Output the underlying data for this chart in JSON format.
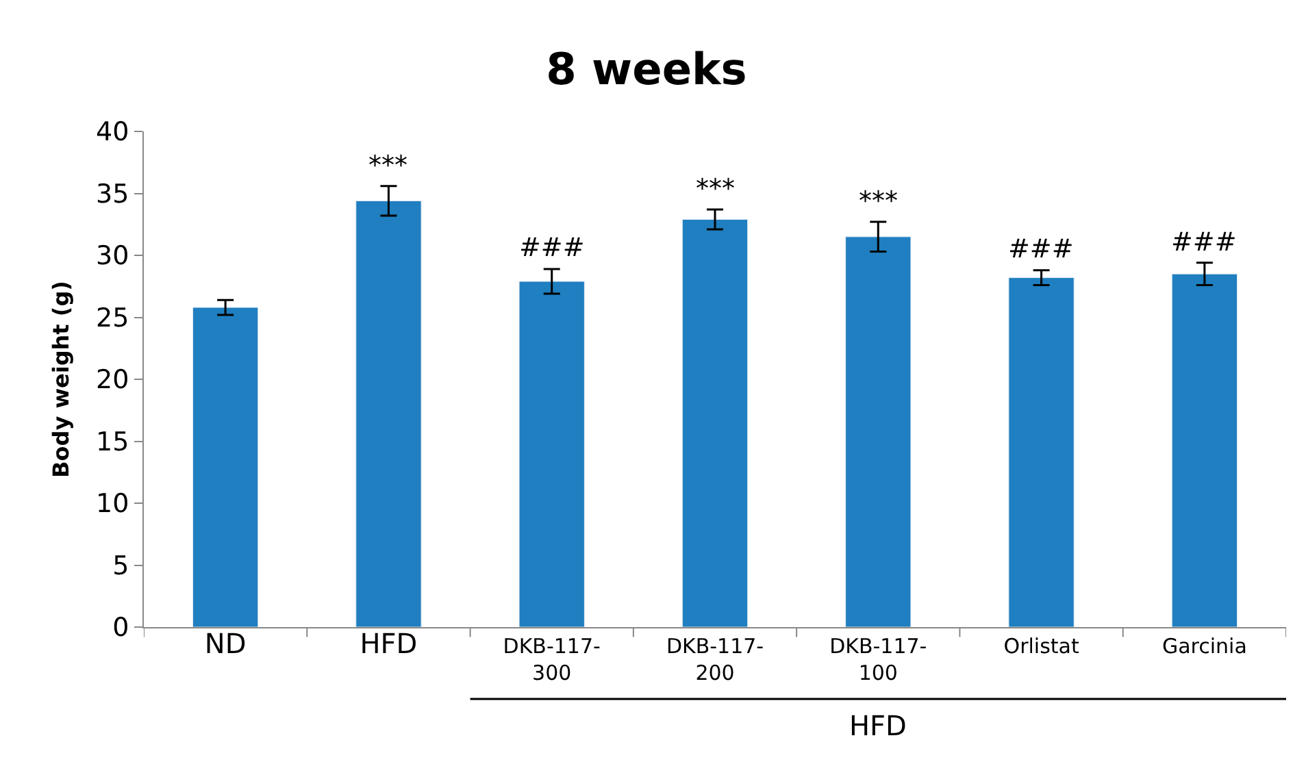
{
  "chart_data": {
    "type": "bar",
    "title": "8 weeks",
    "ylabel": "Body weight (g)",
    "categories": [
      "ND",
      "HFD",
      "DKB-117-300",
      "DKB-117-200",
      "DKB-117-100",
      "Orlistat",
      "Garcinia"
    ],
    "values": [
      25.8,
      34.4,
      27.9,
      32.9,
      31.5,
      28.2,
      28.5
    ],
    "errors": [
      0.6,
      1.2,
      1.0,
      0.8,
      1.2,
      0.6,
      0.9
    ],
    "color": "#1f7fc0",
    "ylim": [
      0,
      40
    ],
    "yticks": [
      0,
      5,
      10,
      15,
      20,
      25,
      30,
      35,
      40
    ],
    "annotations": [
      {
        "text": "***",
        "x": "HFD",
        "y": 35.6
      },
      {
        "text": "###",
        "x": "DKB-117-300",
        "y": 28.9
      },
      {
        "text": "***",
        "x": "DKB-117-200",
        "y": 33.7
      },
      {
        "text": "***",
        "x": "DKB-117-100",
        "y": 32.7
      },
      {
        "text": "###",
        "x": "Orlistat",
        "y": 28.8
      },
      {
        "text": "###",
        "x": "Garcinia",
        "y": 29.4
      },
      "HFD"
    ]
  }
}
